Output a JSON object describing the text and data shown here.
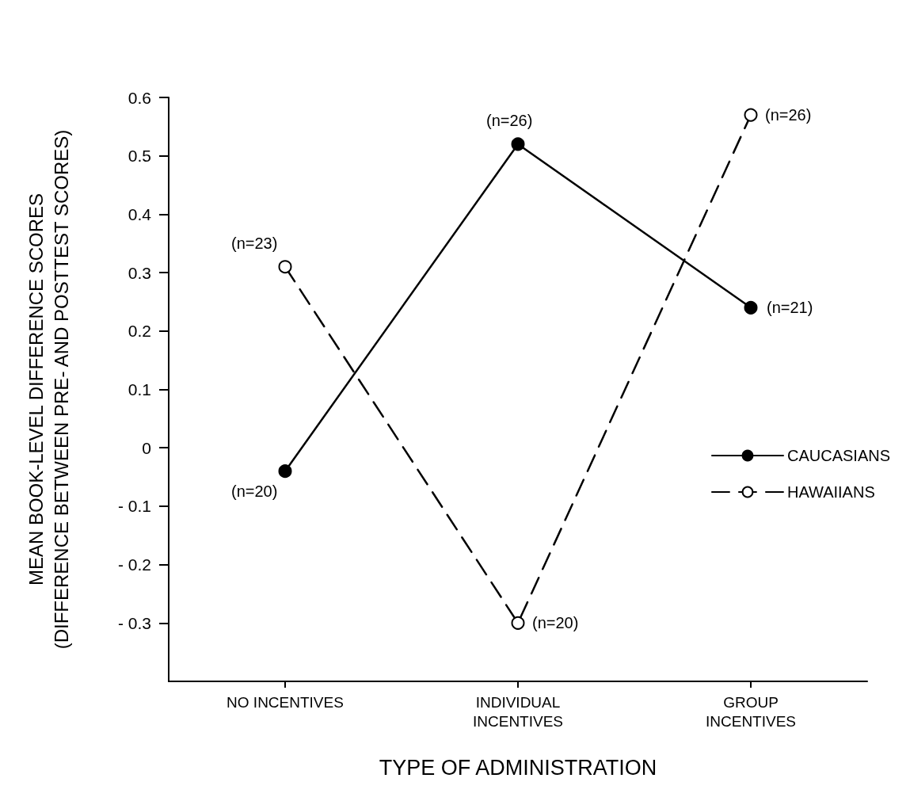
{
  "chart_data": {
    "type": "line",
    "xlabel": "TYPE OF ADMINISTRATION",
    "ylabel": "MEAN BOOK-LEVEL DIFFERENCE SCORES\n(DIFFERENCE BETWEEN PRE- AND POSTTEST SCORES)",
    "categories": [
      "NO INCENTIVES",
      "INDIVIDUAL\nINCENTIVES",
      "GROUP\nINCENTIVES"
    ],
    "series": [
      {
        "name": "CAUCASIANS",
        "color": "#000000",
        "line_style": "solid",
        "values": [
          -0.04,
          0.52,
          0.24
        ]
      },
      {
        "name": "HAWAIIANS",
        "color": "#000000",
        "line_style": "dashed",
        "values": [
          0.31,
          -0.3,
          0.57
        ]
      }
    ],
    "ylim": [
      -0.4,
      0.6
    ],
    "yticks": [
      {
        "value": -0.3,
        "label": "- 0.3"
      },
      {
        "value": -0.2,
        "label": "- 0.2"
      },
      {
        "value": -0.1,
        "label": "- 0.1"
      },
      0,
      0.1,
      0.2,
      0.3,
      0.4,
      0.5,
      0.6
    ],
    "annotations": [
      {
        "text": "(n=20)",
        "x": "NO INCENTIVES",
        "y": -0.04
      },
      {
        "text": "(n=26)",
        "x": "INDIVIDUAL\nINCENTIVES",
        "y": 0.52
      },
      {
        "text": "(n=21)",
        "x": "GROUP\nINCENTIVES",
        "y": 0.24
      },
      {
        "text": "(n=23)",
        "x": "NO INCENTIVES",
        "y": 0.31
      },
      {
        "text": "(n=20)",
        "x": "INDIVIDUAL\nINCENTIVES",
        "y": -0.3
      },
      {
        "text": "(n=26)",
        "x": "GROUP\nINCENTIVES",
        "y": 0.57
      }
    ],
    "marker": "circle",
    "grid": false,
    "legend": "right"
  }
}
